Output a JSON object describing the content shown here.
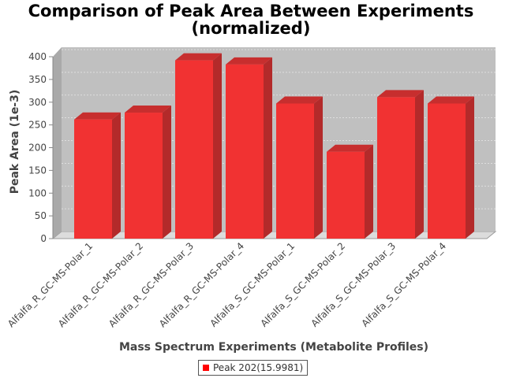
{
  "chart_data": {
    "type": "bar",
    "title": [
      "Comparison of Peak Area Between Experiments",
      "(normalized)"
    ],
    "xlabel": "Mass Spectrum Experiments (Metabolite Profiles)",
    "ylabel": "Peak Area (1e-3)",
    "ylim": [
      0,
      400
    ],
    "yticks": [
      0,
      50,
      100,
      150,
      200,
      250,
      300,
      350,
      400
    ],
    "grid": true,
    "legend_position": "bottom",
    "categories": [
      "Alfalfa_R_GC-MS-Polar_1",
      "Alfalfa_R_GC-MS-Polar_2",
      "Alfalfa_R_GC-MS-Polar_3",
      "Alfalfa_R_GC-MS-Polar_4",
      "Alfalfa_S_GC-MS-Polar_1",
      "Alfalfa_S_GC-MS-Polar_2",
      "Alfalfa_S_GC-MS-Polar_3",
      "Alfalfa_S_GC-MS-Polar_4"
    ],
    "series": [
      {
        "name": "Peak 202(15.9981)",
        "color": "#ff0000",
        "values": [
          262,
          277,
          392,
          383,
          297,
          191,
          311,
          297
        ]
      }
    ]
  },
  "legend": {
    "items": [
      {
        "label": "Peak 202(15.9981)",
        "color": "#ff0000"
      }
    ]
  }
}
